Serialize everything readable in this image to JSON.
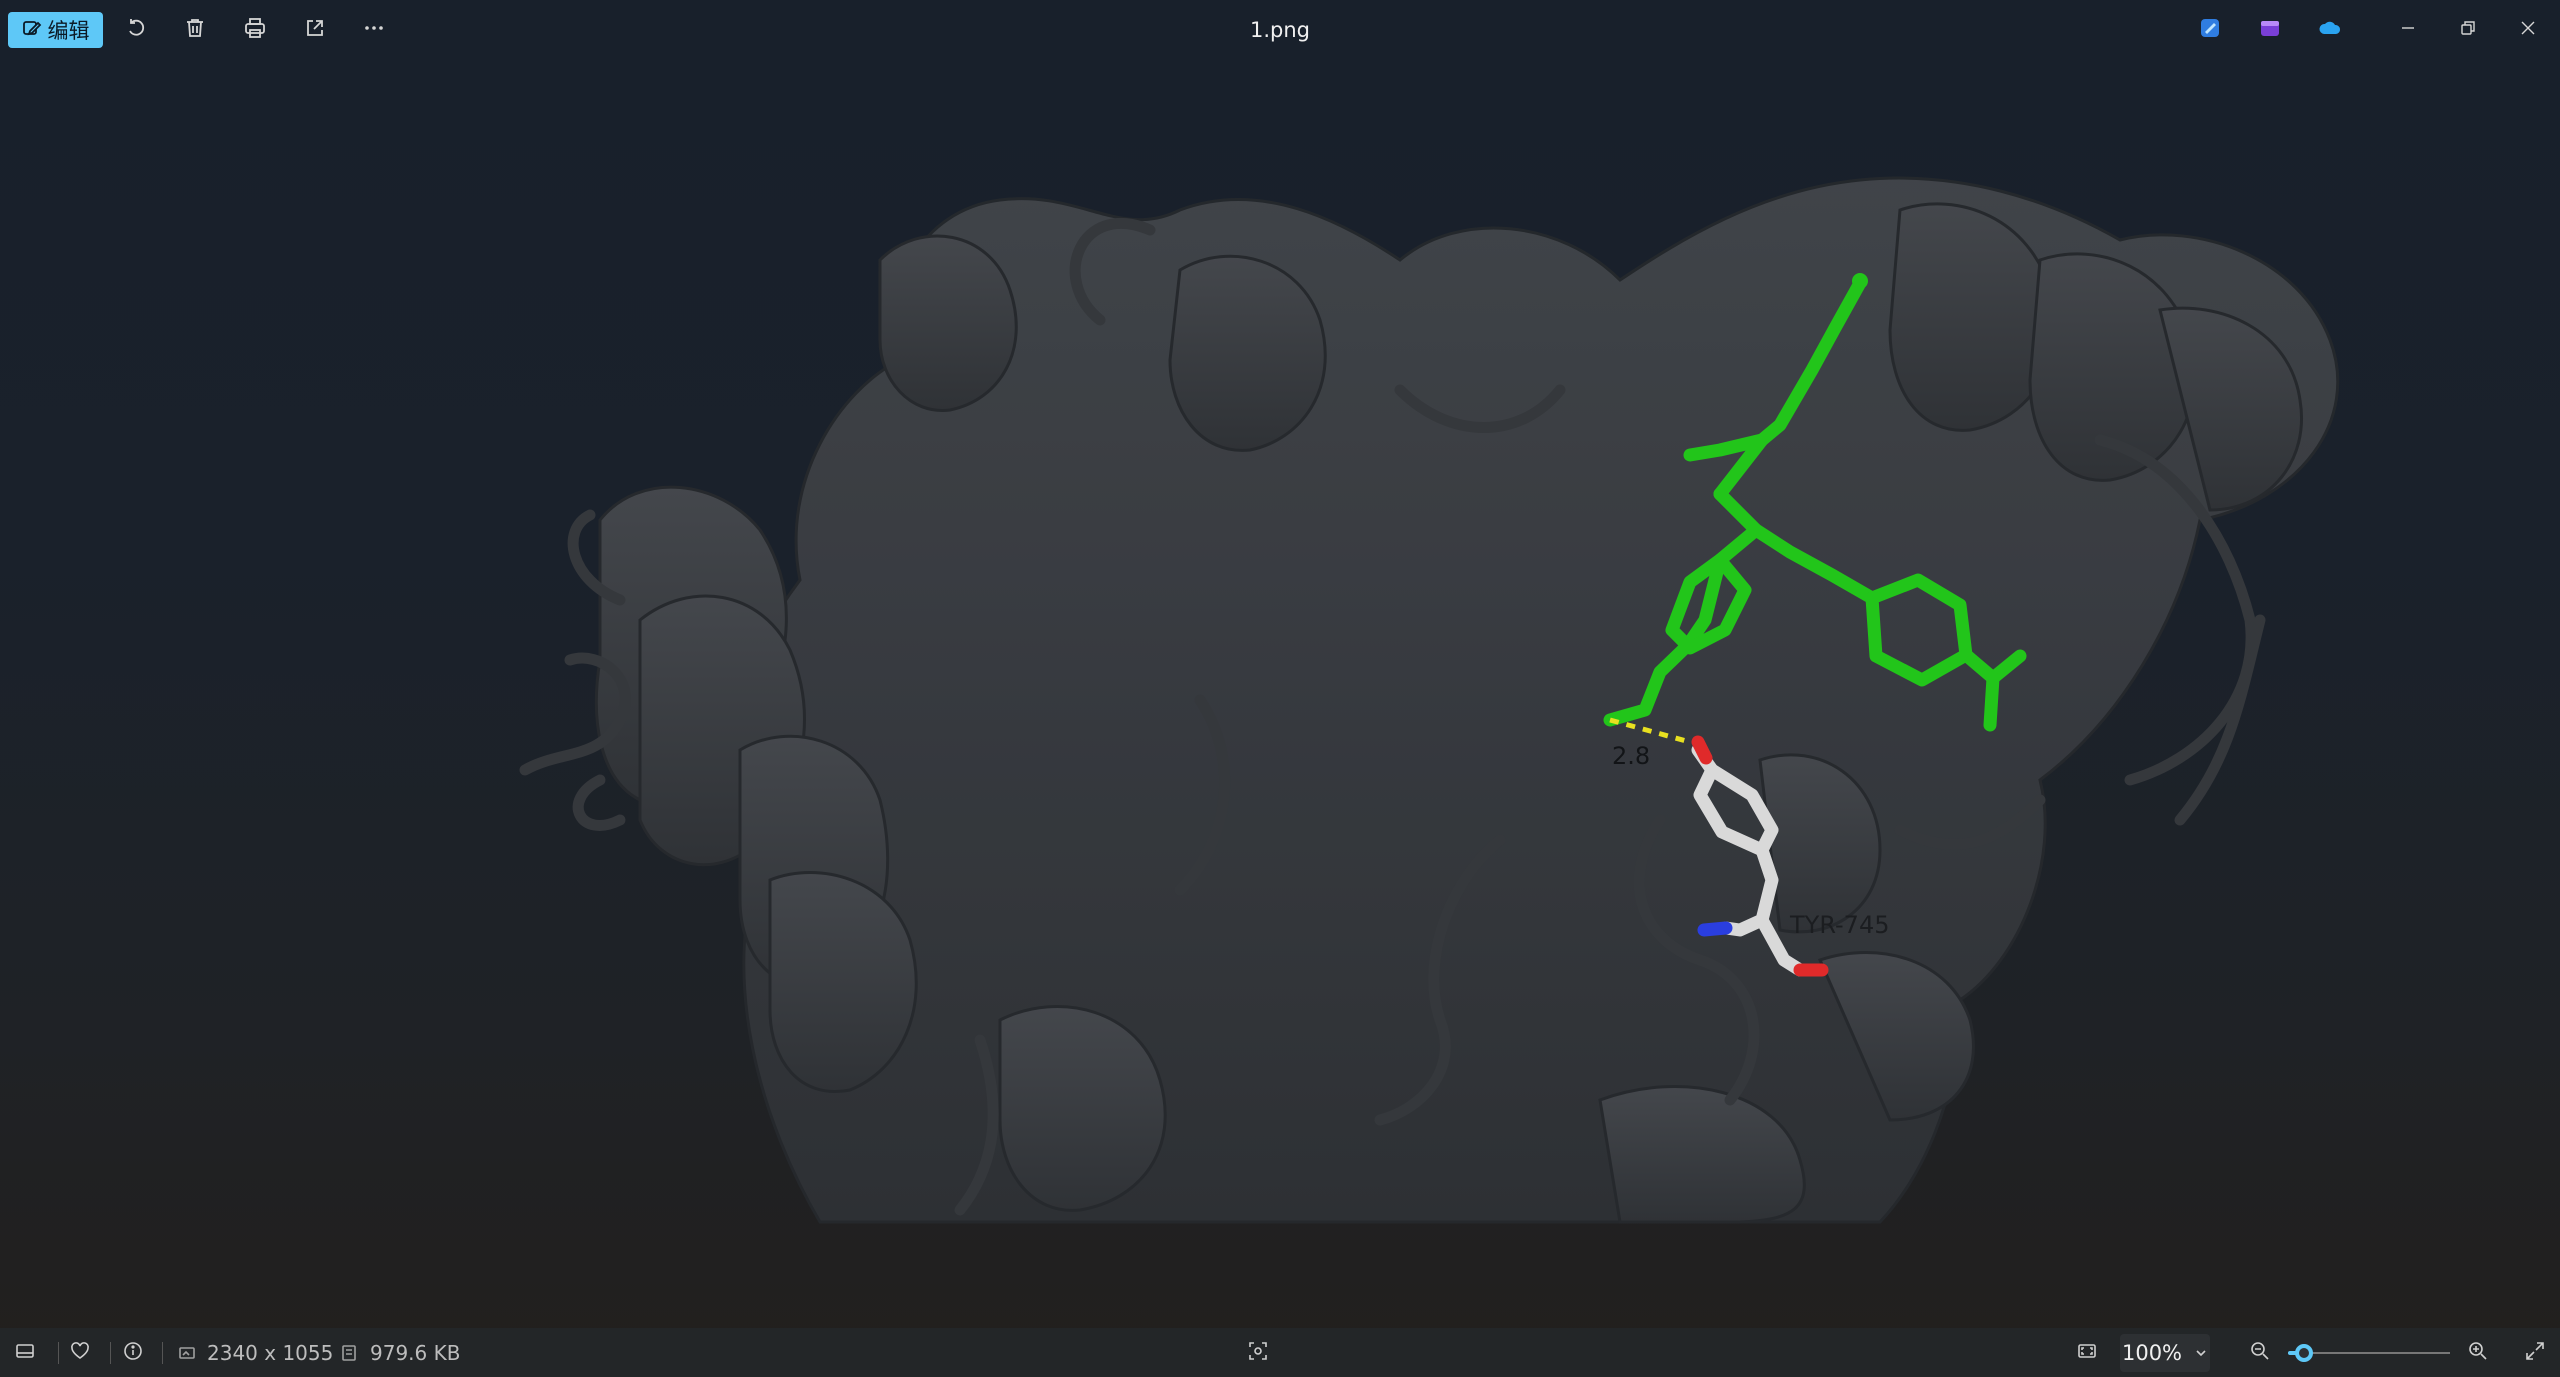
{
  "window": {
    "title": "1.png"
  },
  "toolbar": {
    "edit_label": "编辑",
    "edit_icon": "edit-image-icon",
    "rotate_icon": "rotate-icon",
    "delete_icon": "trash-icon",
    "print_icon": "print-icon",
    "share_icon": "share-icon",
    "more_icon": "more-icon"
  },
  "apps": {
    "icons": [
      "designer-icon",
      "clipchamp-icon",
      "onedrive-icon"
    ],
    "accent": "#5ec8f7"
  },
  "image": {
    "distance_label": "2.8",
    "residue_label": "TYR-745",
    "ligand_color": "#22c51a",
    "residue_color": "#d9d9d9",
    "protein_color": "#3d4045",
    "hbond_color": "#e8e020"
  },
  "status": {
    "dimensions": "2340 x 1055",
    "file_size": "979.6 KB",
    "zoom": "100%",
    "zoom_fraction": 0.1
  }
}
